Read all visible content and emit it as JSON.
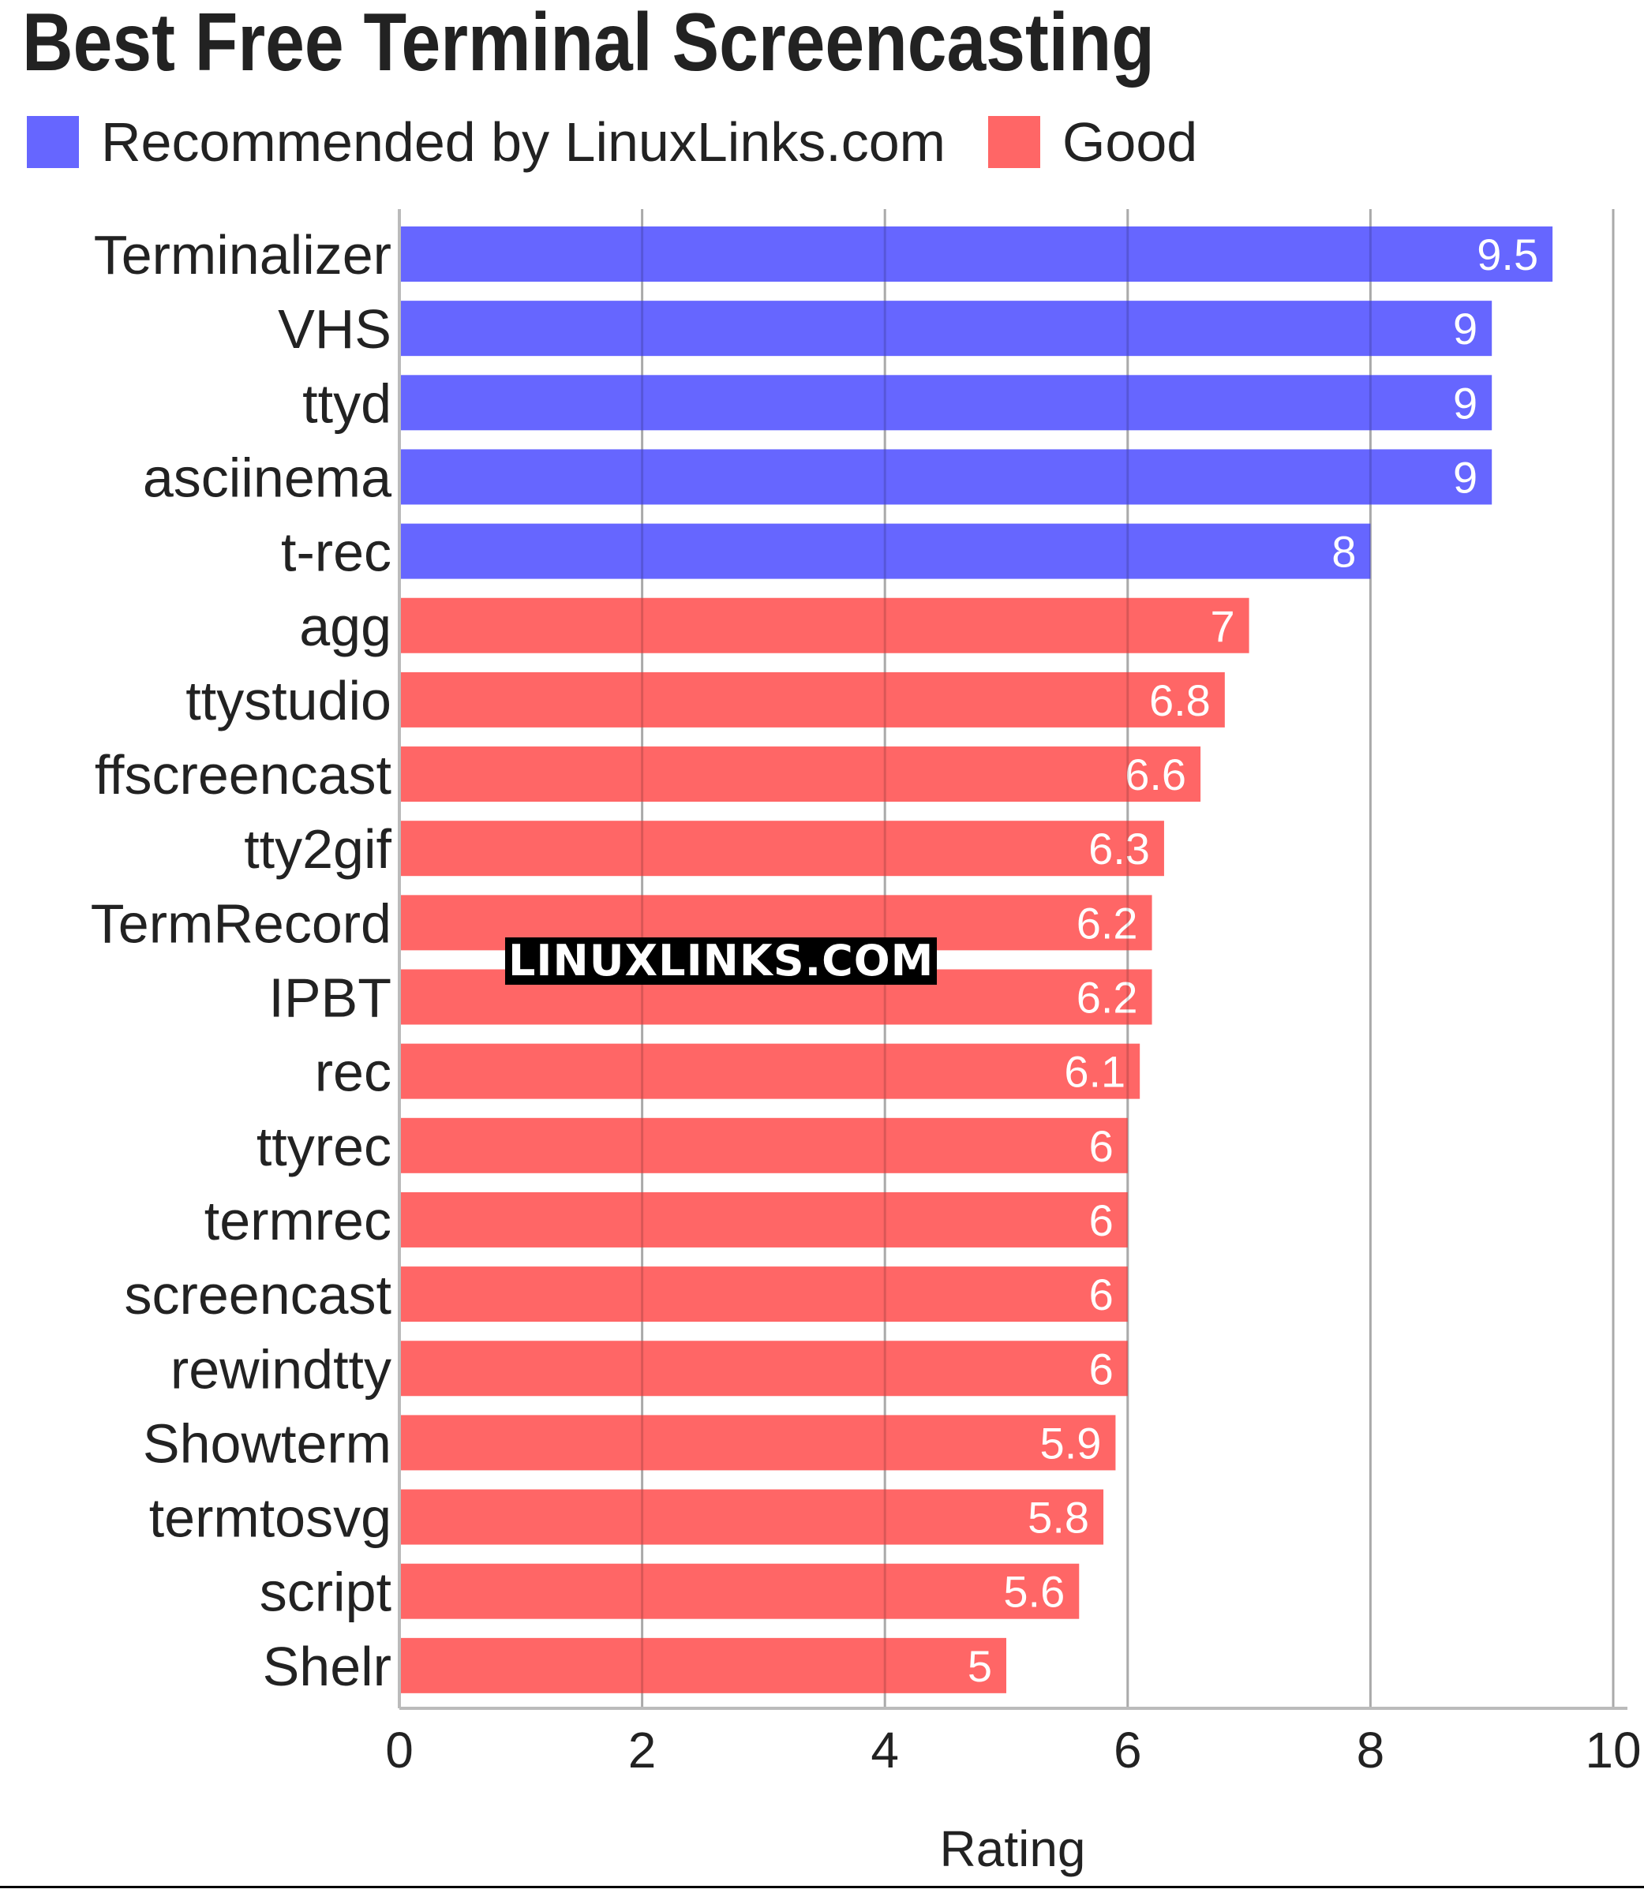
{
  "chart_data": {
    "type": "bar",
    "orientation": "horizontal",
    "title": "Best Free Terminal Screencasting",
    "xlabel": "Rating",
    "ylabel": "",
    "xlim": [
      0,
      10
    ],
    "xticks": [
      0,
      2,
      4,
      6,
      8,
      10
    ],
    "grid": true,
    "legend_position": "top-left",
    "legend": [
      {
        "name": "Recommended by LinuxLinks.com",
        "color": "#6666ff"
      },
      {
        "name": "Good",
        "color": "#ff6666"
      }
    ],
    "categories": [
      "Terminalizer",
      "VHS",
      "ttyd",
      "asciinema",
      "t-rec",
      "agg",
      "ttystudio",
      "ffscreencast",
      "tty2gif",
      "TermRecord",
      "IPBT",
      "rec",
      "ttyrec",
      "termrec",
      "screencast",
      "rewindtty",
      "Showterm",
      "termtosvg",
      "script",
      "Shelr"
    ],
    "values": [
      9.5,
      9,
      9,
      9,
      8,
      7,
      6.8,
      6.6,
      6.3,
      6.2,
      6.2,
      6.1,
      6,
      6,
      6,
      6,
      5.9,
      5.8,
      5.6,
      5
    ],
    "value_labels": [
      "9.5",
      "9",
      "9",
      "9",
      "8",
      "7",
      "6.8",
      "6.6",
      "6.3",
      "6.2",
      "6.2",
      "6.1",
      "6",
      "6",
      "6",
      "6",
      "5.9",
      "5.8",
      "5.6",
      "5"
    ],
    "groups": [
      0,
      0,
      0,
      0,
      0,
      1,
      1,
      1,
      1,
      1,
      1,
      1,
      1,
      1,
      1,
      1,
      1,
      1,
      1,
      1
    ]
  },
  "watermark": "LINUXLINKS.COM"
}
